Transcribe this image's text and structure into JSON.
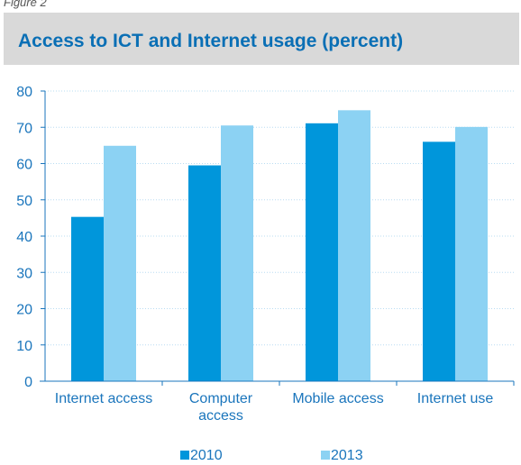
{
  "figure_label": "Figure 2",
  "title": "Access to ICT and Internet usage (percent)",
  "colors": {
    "title_band": "#d9d9d9",
    "title_text": "#0a6fb5",
    "axis_text": "#1a75bc",
    "series_2010": "#0096db",
    "series_2013": "#8cd2f3"
  },
  "chart_data": {
    "type": "bar",
    "title": "Access to ICT and Internet usage (percent)",
    "categories": [
      [
        "Internet access"
      ],
      [
        "Computer",
        "access"
      ],
      [
        "Mobile access"
      ],
      [
        "Internet use"
      ]
    ],
    "series": [
      {
        "name": "2010",
        "values": [
          45.3,
          59.5,
          71.1,
          66.0
        ],
        "color": "#0096db"
      },
      {
        "name": "2013",
        "values": [
          64.9,
          70.5,
          74.7,
          70.1
        ],
        "color": "#8cd2f3"
      }
    ],
    "ylim": [
      0,
      80
    ],
    "yticks": [
      0,
      10,
      20,
      30,
      40,
      50,
      60,
      70,
      80
    ],
    "grid": true,
    "legend_position": "bottom"
  }
}
